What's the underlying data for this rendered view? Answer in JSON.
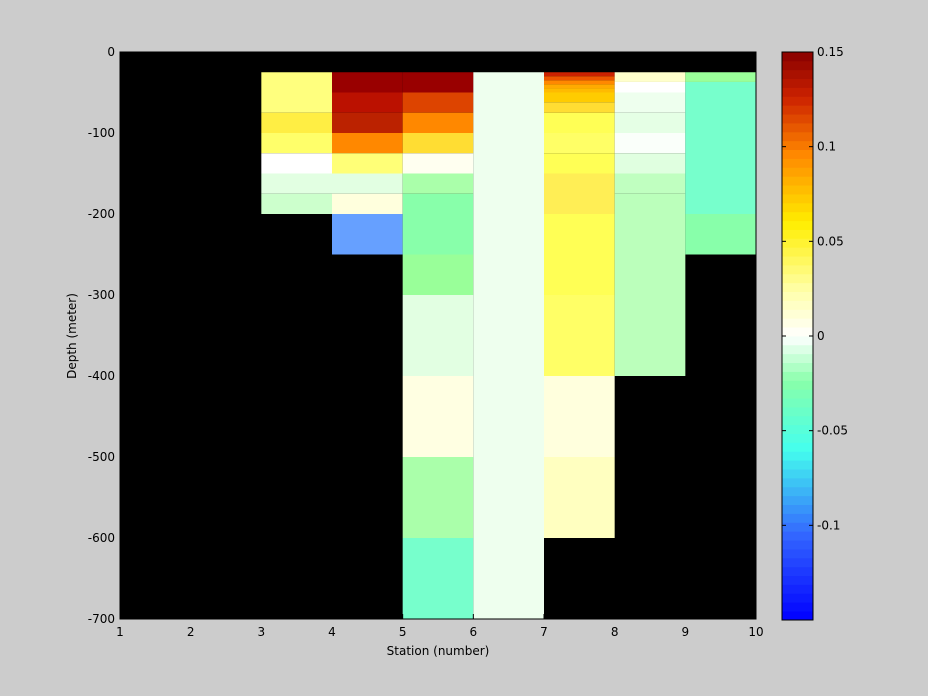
{
  "figure": {
    "background": "#cccccc"
  },
  "chart_data": {
    "type": "heatmap",
    "xlabel": "Station (number)",
    "ylabel": "Depth (meter)",
    "xlim": [
      1,
      10
    ],
    "ylim": [
      -700,
      0
    ],
    "xticks": [
      1,
      2,
      3,
      4,
      5,
      6,
      7,
      8,
      9,
      10
    ],
    "yticks": [
      0,
      -100,
      -200,
      -300,
      -400,
      -500,
      -600,
      -700
    ],
    "missing_color": "#000000",
    "colorbar": {
      "clim": [
        -0.15,
        0.15
      ],
      "colormap": "jet-like (blue-cyan-green-white-yellow-orange-darkred)",
      "ticks": [
        0.15,
        0.1,
        0.05,
        0,
        -0.05,
        -0.1
      ],
      "tick_labels": [
        "0.15",
        "0.1",
        "0.05",
        "0",
        "-0.05",
        "-0.1"
      ]
    },
    "cells": [
      {
        "x": [
          3,
          4
        ],
        "y": [
          -25,
          -50
        ],
        "value": 0.045,
        "color": "#ffff7e"
      },
      {
        "x": [
          3,
          4
        ],
        "y": [
          -50,
          -75
        ],
        "value": 0.04,
        "color": "#ffff7e"
      },
      {
        "x": [
          3,
          4
        ],
        "y": [
          -75,
          -100
        ],
        "value": 0.055,
        "color": "#ffee44"
      },
      {
        "x": [
          3,
          4
        ],
        "y": [
          -100,
          -125
        ],
        "value": 0.045,
        "color": "#ffff6a"
      },
      {
        "x": [
          3,
          4
        ],
        "y": [
          -125,
          -150
        ],
        "value": 0.0,
        "color": "#ffffff"
      },
      {
        "x": [
          3,
          4
        ],
        "y": [
          -150,
          -175
        ],
        "value": -0.02,
        "color": "#e2ffe2"
      },
      {
        "x": [
          3,
          4
        ],
        "y": [
          -175,
          -200
        ],
        "value": -0.03,
        "color": "#ccffcc"
      },
      {
        "x": [
          4,
          5
        ],
        "y": [
          -25,
          -50
        ],
        "value": 0.15,
        "color": "#990000"
      },
      {
        "x": [
          4,
          5
        ],
        "y": [
          -50,
          -75
        ],
        "value": 0.14,
        "color": "#bb1100"
      },
      {
        "x": [
          4,
          5
        ],
        "y": [
          -75,
          -100
        ],
        "value": 0.13,
        "color": "#bb2200"
      },
      {
        "x": [
          4,
          5
        ],
        "y": [
          -100,
          -125
        ],
        "value": 0.095,
        "color": "#ff8800"
      },
      {
        "x": [
          4,
          5
        ],
        "y": [
          -125,
          -150
        ],
        "value": 0.05,
        "color": "#ffff77"
      },
      {
        "x": [
          4,
          5
        ],
        "y": [
          -150,
          -175
        ],
        "value": -0.02,
        "color": "#e2ffe2"
      },
      {
        "x": [
          4,
          5
        ],
        "y": [
          -175,
          -200
        ],
        "value": 0.01,
        "color": "#ffffdd"
      },
      {
        "x": [
          4,
          5
        ],
        "y": [
          -200,
          -250
        ],
        "value": -0.1,
        "color": "#66a0ff"
      },
      {
        "x": [
          5,
          6
        ],
        "y": [
          -25,
          -50
        ],
        "value": 0.15,
        "color": "#990000"
      },
      {
        "x": [
          5,
          6
        ],
        "y": [
          -50,
          -75
        ],
        "value": 0.11,
        "color": "#dd4400"
      },
      {
        "x": [
          5,
          6
        ],
        "y": [
          -75,
          -100
        ],
        "value": 0.1,
        "color": "#ff8800"
      },
      {
        "x": [
          5,
          6
        ],
        "y": [
          -100,
          -125
        ],
        "value": 0.06,
        "color": "#ffdd33"
      },
      {
        "x": [
          5,
          6
        ],
        "y": [
          -125,
          -150
        ],
        "value": 0.01,
        "color": "#fffff0"
      },
      {
        "x": [
          5,
          6
        ],
        "y": [
          -150,
          -175
        ],
        "value": -0.04,
        "color": "#aaffaa"
      },
      {
        "x": [
          5,
          6
        ],
        "y": [
          -175,
          -250
        ],
        "value": -0.05,
        "color": "#88ffaa"
      },
      {
        "x": [
          5,
          6
        ],
        "y": [
          -250,
          -300
        ],
        "value": -0.045,
        "color": "#99ff99"
      },
      {
        "x": [
          5,
          6
        ],
        "y": [
          -300,
          -400
        ],
        "value": -0.02,
        "color": "#e2ffe2"
      },
      {
        "x": [
          5,
          6
        ],
        "y": [
          -400,
          -500
        ],
        "value": 0.01,
        "color": "#ffffe2"
      },
      {
        "x": [
          5,
          6
        ],
        "y": [
          -500,
          -600
        ],
        "value": -0.035,
        "color": "#aaffaa"
      },
      {
        "x": [
          5,
          6
        ],
        "y": [
          -600,
          -700
        ],
        "value": -0.06,
        "color": "#77ffcc"
      },
      {
        "x": [
          6,
          7
        ],
        "y": [
          -25,
          -700
        ],
        "value": -0.005,
        "color": "#eeffee"
      },
      {
        "x": [
          7,
          8
        ],
        "y": [
          -25,
          -30
        ],
        "value": 0.14,
        "color": "#cc2200"
      },
      {
        "x": [
          7,
          8
        ],
        "y": [
          -30,
          -35
        ],
        "value": 0.12,
        "color": "#ee5500"
      },
      {
        "x": [
          7,
          8
        ],
        "y": [
          -35,
          -40
        ],
        "value": 0.1,
        "color": "#ff8800"
      },
      {
        "x": [
          7,
          8
        ],
        "y": [
          -40,
          -45
        ],
        "value": 0.09,
        "color": "#ffaa00"
      },
      {
        "x": [
          7,
          8
        ],
        "y": [
          -45,
          -50
        ],
        "value": 0.08,
        "color": "#ffbb00"
      },
      {
        "x": [
          7,
          8
        ],
        "y": [
          -50,
          -62
        ],
        "value": 0.07,
        "color": "#ffcc00"
      },
      {
        "x": [
          7,
          8
        ],
        "y": [
          -62,
          -75
        ],
        "value": 0.06,
        "color": "#ffdd33"
      },
      {
        "x": [
          7,
          8
        ],
        "y": [
          -75,
          -100
        ],
        "value": 0.05,
        "color": "#ffff55"
      },
      {
        "x": [
          7,
          8
        ],
        "y": [
          -100,
          -125
        ],
        "value": 0.045,
        "color": "#ffff66"
      },
      {
        "x": [
          7,
          8
        ],
        "y": [
          -125,
          -150
        ],
        "value": 0.05,
        "color": "#ffff55"
      },
      {
        "x": [
          7,
          8
        ],
        "y": [
          -150,
          -200
        ],
        "value": 0.055,
        "color": "#ffee55"
      },
      {
        "x": [
          7,
          8
        ],
        "y": [
          -200,
          -300
        ],
        "value": 0.05,
        "color": "#ffff55"
      },
      {
        "x": [
          7,
          8
        ],
        "y": [
          -300,
          -400
        ],
        "value": 0.045,
        "color": "#ffff66"
      },
      {
        "x": [
          7,
          8
        ],
        "y": [
          -400,
          -500
        ],
        "value": 0.015,
        "color": "#ffffdd"
      },
      {
        "x": [
          7,
          8
        ],
        "y": [
          -500,
          -600
        ],
        "value": 0.025,
        "color": "#ffffc0"
      },
      {
        "x": [
          8,
          9
        ],
        "y": [
          -25,
          -37
        ],
        "value": 0.02,
        "color": "#ffffcc"
      },
      {
        "x": [
          8,
          9
        ],
        "y": [
          -37,
          -50
        ],
        "value": 0.0,
        "color": "#ffffff"
      },
      {
        "x": [
          8,
          9
        ],
        "y": [
          -50,
          -75
        ],
        "value": -0.01,
        "color": "#eeffee"
      },
      {
        "x": [
          8,
          9
        ],
        "y": [
          -75,
          -100
        ],
        "value": -0.015,
        "color": "#e5ffe5"
      },
      {
        "x": [
          8,
          9
        ],
        "y": [
          -100,
          -125
        ],
        "value": 0.0,
        "color": "#fafffa"
      },
      {
        "x": [
          8,
          9
        ],
        "y": [
          -125,
          -150
        ],
        "value": -0.02,
        "color": "#e0ffe0"
      },
      {
        "x": [
          8,
          9
        ],
        "y": [
          -150,
          -175
        ],
        "value": -0.035,
        "color": "#c0ffc0"
      },
      {
        "x": [
          8,
          9
        ],
        "y": [
          -175,
          -400
        ],
        "value": -0.035,
        "color": "#bbffbb"
      },
      {
        "x": [
          9,
          10
        ],
        "y": [
          -25,
          -37
        ],
        "value": -0.04,
        "color": "#99ff99"
      },
      {
        "x": [
          9,
          10
        ],
        "y": [
          -37,
          -200
        ],
        "value": -0.06,
        "color": "#77ffcc"
      },
      {
        "x": [
          9,
          10
        ],
        "y": [
          -200,
          -250
        ],
        "value": -0.05,
        "color": "#88ffaa"
      }
    ]
  }
}
